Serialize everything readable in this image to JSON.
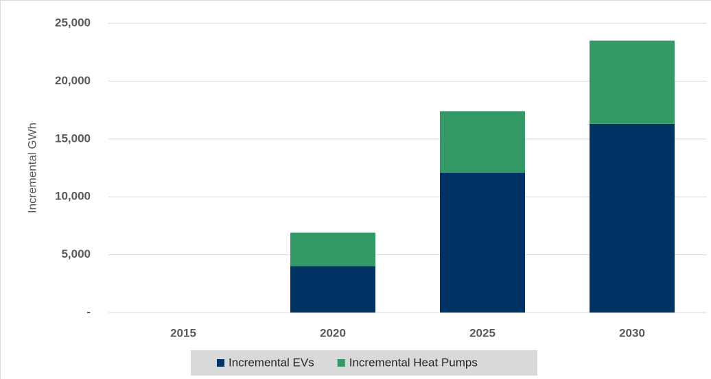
{
  "chart_data": {
    "type": "stacked_bar",
    "y_label": "Incremental GWh",
    "categories": [
      "2015",
      "2020",
      "2025",
      "2030"
    ],
    "series": [
      {
        "name": "Incremental EVs",
        "color": "#003263",
        "values": [
          0,
          4000,
          12100,
          16300
        ]
      },
      {
        "name": "Incremental Heat Pumps",
        "color": "#339966",
        "values": [
          0,
          2900,
          5300,
          7200
        ]
      }
    ],
    "ylim": [
      0,
      25000
    ],
    "yticks": [
      {
        "value": 0,
        "label": "-"
      },
      {
        "value": 5000,
        "label": "5,000"
      },
      {
        "value": 10000,
        "label": "10,000"
      },
      {
        "value": 15000,
        "label": "15,000"
      },
      {
        "value": 20000,
        "label": "20,000"
      },
      {
        "value": 25000,
        "label": "25,000"
      }
    ],
    "grid": true,
    "legend": "bottom"
  }
}
